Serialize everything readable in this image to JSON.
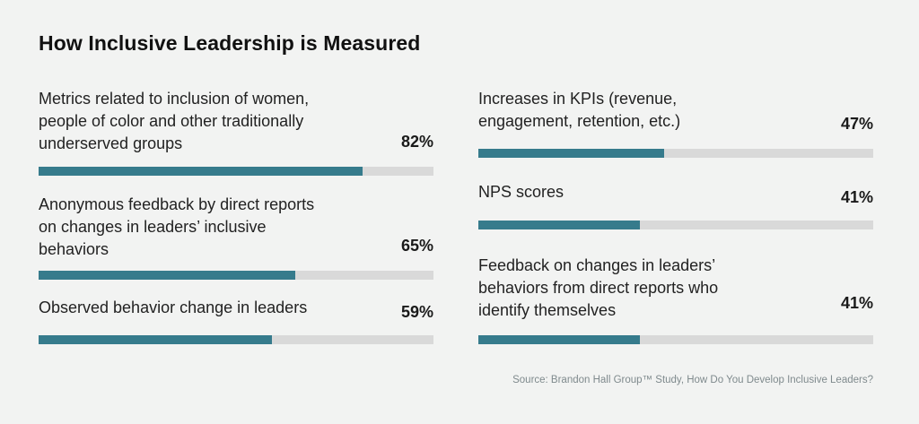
{
  "title": "How Inclusive Leadership is Measured",
  "source": "Source: Brandon Hall Group™ Study, How Do You Develop Inclusive Leaders?",
  "colors": {
    "fill": "#367b8c",
    "track": "#d9d9d9",
    "background": "#f2f3f2"
  },
  "chart_data": {
    "type": "bar",
    "orientation": "horizontal",
    "title": "How Inclusive Leadership is Measured",
    "xlim": [
      0,
      100
    ],
    "unit": "%",
    "categories": [
      "Metrics related to inclusion of women, people of color and other traditionally underserved groups",
      "Anonymous feedback by direct reports on changes in leaders’ inclusive behaviors",
      "Observed behavior change in leaders",
      "Increases in KPIs (revenue, engagement, retention, etc.)",
      "NPS scores",
      "Feedback on changes in leaders’ behaviors from direct reports who identify themselves"
    ],
    "values": [
      82,
      65,
      59,
      47,
      41,
      41
    ],
    "labels": [
      "82%",
      "65%",
      "59%",
      "47%",
      "41%",
      "41%"
    ],
    "annotation": "Source: Brandon Hall Group™ Study, How Do You Develop Inclusive Leaders?"
  },
  "items": [
    {
      "label": "Metrics related to inclusion of women,\npeople of color and other traditionally\nunderserved groups",
      "pct": "82%",
      "value": 82
    },
    {
      "label": "Anonymous feedback by direct reports\non changes in leaders’ inclusive\nbehaviors",
      "pct": "65%",
      "value": 65
    },
    {
      "label": "Observed behavior change in leaders",
      "pct": "59%",
      "value": 59
    },
    {
      "label": "Increases in KPIs (revenue,\nengagement, retention, etc.)",
      "pct": "47%",
      "value": 47
    },
    {
      "label": "NPS scores",
      "pct": "41%",
      "value": 41
    },
    {
      "label": "Feedback on changes in leaders’\nbehaviors from direct reports who\nidentify themselves",
      "pct": "41%",
      "value": 41
    }
  ]
}
